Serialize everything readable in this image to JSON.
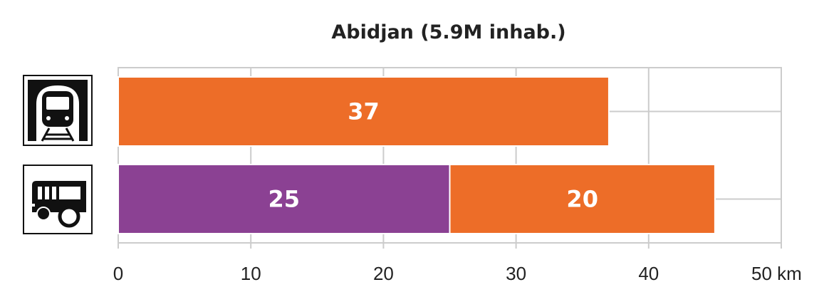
{
  "chart_data": {
    "type": "bar",
    "orientation": "horizontal",
    "stacked": true,
    "title": "Abidjan (5.9M inhab.)",
    "categories": [
      "metro-icon",
      "bus-icon"
    ],
    "series": [
      {
        "values": [
          0,
          25
        ],
        "color": "#8b4193"
      },
      {
        "values": [
          37,
          20
        ],
        "color": "#ed6d28"
      }
    ],
    "xlim": [
      0,
      50
    ],
    "xticks": [
      0,
      10,
      20,
      30,
      40,
      50
    ],
    "xtick_labels": [
      "0",
      "10",
      "20",
      "30",
      "40",
      "50 km"
    ],
    "grid": true
  }
}
